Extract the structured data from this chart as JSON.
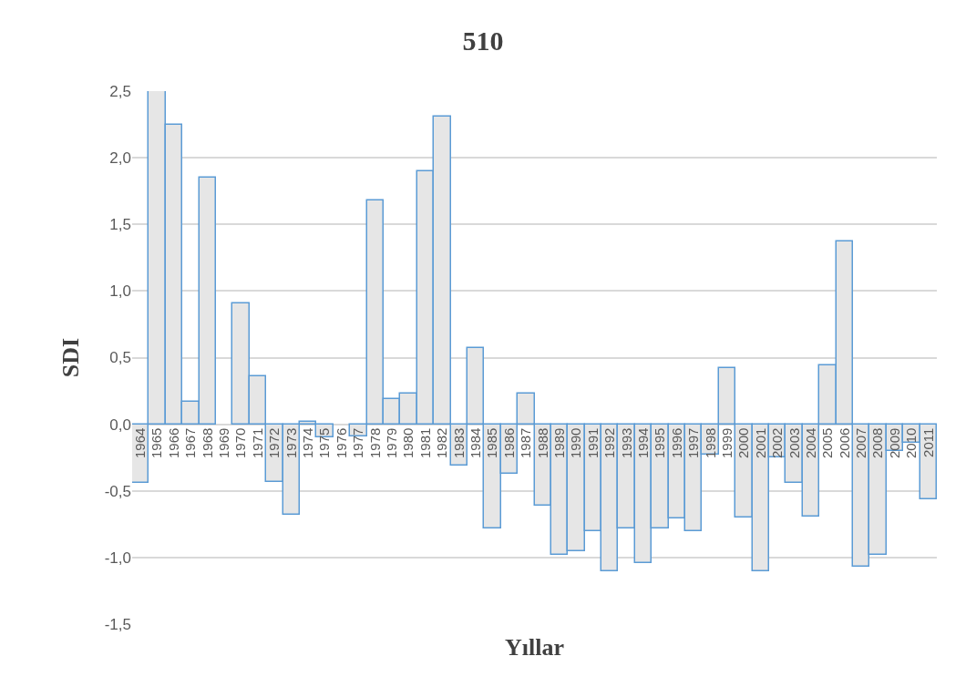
{
  "chart_data": {
    "type": "bar",
    "title": "510",
    "xlabel": "Yıllar",
    "ylabel": "SDI",
    "categories": [
      "1964",
      "1965",
      "1966",
      "1967",
      "1968",
      "1969",
      "1970",
      "1971",
      "1972",
      "1973",
      "1974",
      "1975",
      "1976",
      "1977",
      "1978",
      "1979",
      "1980",
      "1981",
      "1982",
      "1983",
      "1984",
      "1985",
      "1986",
      "1987",
      "1988",
      "1989",
      "1990",
      "1991",
      "1992",
      "1993",
      "1994",
      "1995",
      "1996",
      "1997",
      "1998",
      "1999",
      "2000",
      "2001",
      "2002",
      "2003",
      "2004",
      "2005",
      "2006",
      "2007",
      "2008",
      "2009",
      "2010",
      "2011"
    ],
    "values": [
      -0.44,
      2.5,
      2.25,
      0.17,
      1.85,
      0.0,
      0.91,
      0.36,
      -0.43,
      -0.68,
      0.02,
      -0.1,
      0.0,
      -0.09,
      1.68,
      0.19,
      0.23,
      1.9,
      2.31,
      -0.31,
      0.57,
      -0.78,
      -0.37,
      0.23,
      -0.61,
      -0.98,
      -0.95,
      -0.8,
      -1.1,
      -0.78,
      -1.04,
      -0.78,
      -0.71,
      -0.8,
      -0.23,
      0.42,
      -0.7,
      -1.1,
      -0.25,
      -0.44,
      -0.69,
      0.44,
      1.37,
      -1.07,
      -0.98,
      -0.2,
      -0.14,
      -0.56
    ],
    "color": "#e6e6e6",
    "ylim": [
      -1.5,
      2.5
    ],
    "yticks": [
      {
        "value": -1.5,
        "label": "-1,5"
      },
      {
        "value": -1.0,
        "label": "-1,0"
      },
      {
        "value": -0.5,
        "label": "-0,5"
      },
      {
        "value": 0,
        "label": "0,0"
      },
      {
        "value": 0.5,
        "label": "0,5"
      },
      {
        "value": 1.0,
        "label": "1,0"
      },
      {
        "value": 1.5,
        "label": "1,5"
      },
      {
        "value": 2.0,
        "label": "2,0"
      },
      {
        "value": 2.5,
        "label": "2,5"
      }
    ],
    "grid": "y",
    "legend": false
  }
}
